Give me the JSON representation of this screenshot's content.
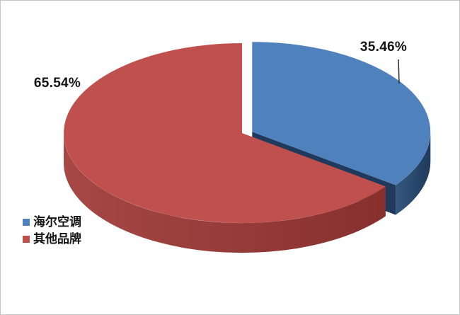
{
  "page": {
    "background": "#ffffff",
    "border_color": "#c6c6c6"
  },
  "chart_data": {
    "type": "pie",
    "style": "3d-exploded",
    "title": "",
    "unit": "%",
    "slices": [
      {
        "label": "海尔空调",
        "value": 35.46,
        "display": "35.46%",
        "color_top": "#4F81BD",
        "color_side": "#35587F",
        "color_side_dark": "#1F3A5C",
        "exploded": true,
        "leader_line": true
      },
      {
        "label": "其他品牌",
        "value": 65.54,
        "display": "65.54%",
        "color_top": "#C0504D",
        "color_side": "#A64845",
        "color_side_dark": "#87302E",
        "exploded": false,
        "leader_line": false
      }
    ],
    "legend_position": "bottom-left",
    "data_labels": "outside-percentage"
  }
}
